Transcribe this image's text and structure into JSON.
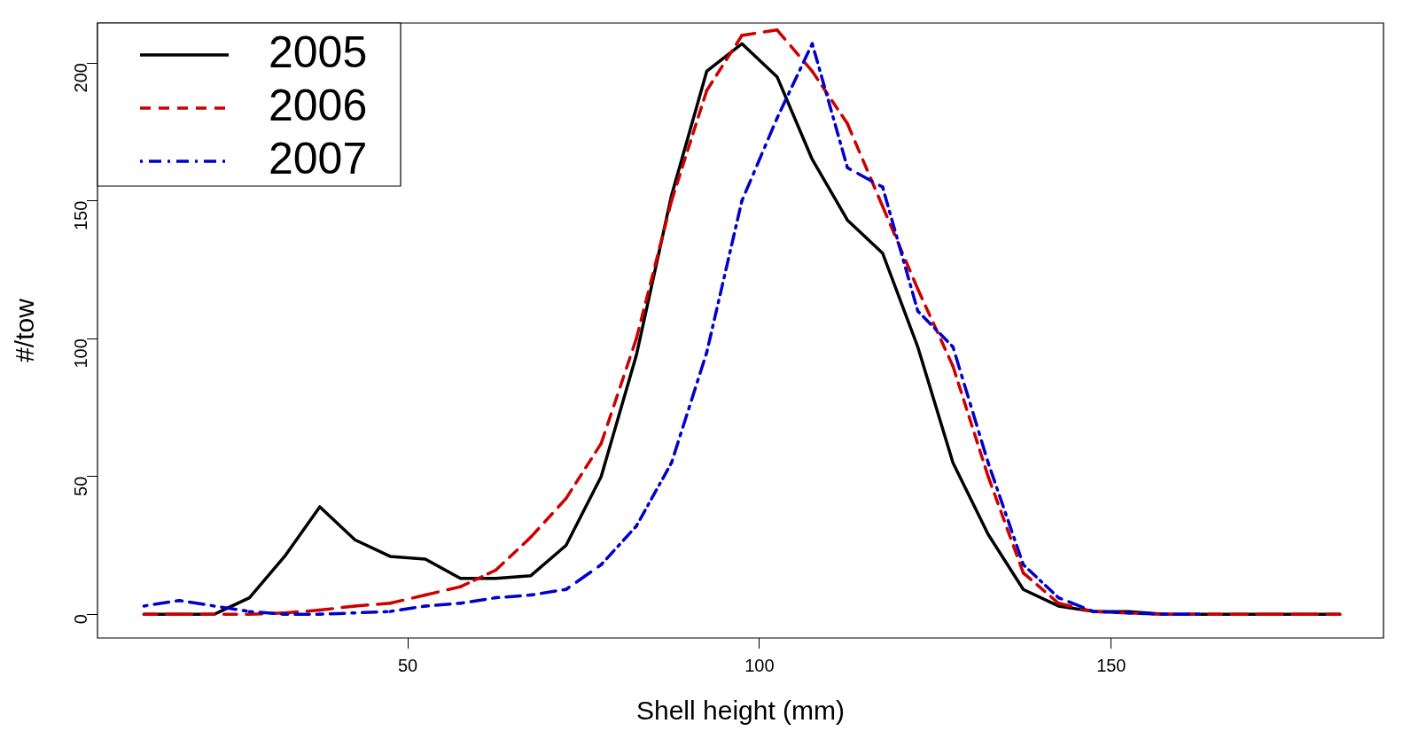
{
  "chart_data": {
    "type": "line",
    "xlabel": "Shell height (mm)",
    "ylabel": "#/tow",
    "x": [
      12.5,
      17.5,
      22.5,
      27.5,
      32.5,
      37.5,
      42.5,
      47.5,
      52.5,
      57.5,
      62.5,
      67.5,
      72.5,
      77.5,
      82.5,
      87.5,
      92.5,
      97.5,
      102.5,
      107.5,
      112.5,
      117.5,
      122.5,
      127.5,
      132.5,
      137.5,
      142.5,
      147.5,
      152.5,
      157.5,
      162.5,
      167.5,
      172.5,
      177.5,
      182.5
    ],
    "series": [
      {
        "name": "2005",
        "color": "#000000",
        "line_style": "solid",
        "values": [
          0,
          0,
          0,
          6,
          21,
          39,
          27,
          21,
          20,
          13,
          13,
          14,
          25,
          50,
          94,
          152,
          197,
          207,
          195,
          165,
          143,
          131,
          97,
          55,
          29,
          9,
          3,
          1,
          1,
          0,
          0,
          0,
          0,
          0,
          0
        ]
      },
      {
        "name": "2006",
        "color": "#cc0000",
        "line_style": "dashed",
        "values": [
          0,
          0,
          0,
          0,
          0.5,
          1.5,
          3,
          4,
          7,
          10,
          16,
          28,
          42,
          62,
          100,
          150,
          190,
          210,
          212,
          197,
          178,
          148,
          118,
          90,
          50,
          15,
          4,
          1,
          0.5,
          0,
          0,
          0,
          0,
          0,
          0
        ]
      },
      {
        "name": "2007",
        "color": "#0000cc",
        "line_style": "dashdot",
        "values": [
          3,
          5,
          3,
          1,
          0,
          0,
          0.5,
          1,
          3,
          4,
          6,
          7,
          9,
          18,
          32,
          55,
          95,
          150,
          180,
          207,
          162,
          155,
          110,
          97,
          55,
          18,
          6,
          1,
          0.5,
          0,
          0,
          null,
          null,
          null,
          null
        ]
      }
    ],
    "xlim": [
      5.9,
      188.7
    ],
    "xticks": [
      50,
      100,
      150
    ],
    "ylim": [
      -8.6,
      214.5
    ],
    "yticks": [
      0,
      50,
      100,
      150,
      200
    ],
    "grid": false,
    "legend": "top left",
    "marker": "none"
  }
}
